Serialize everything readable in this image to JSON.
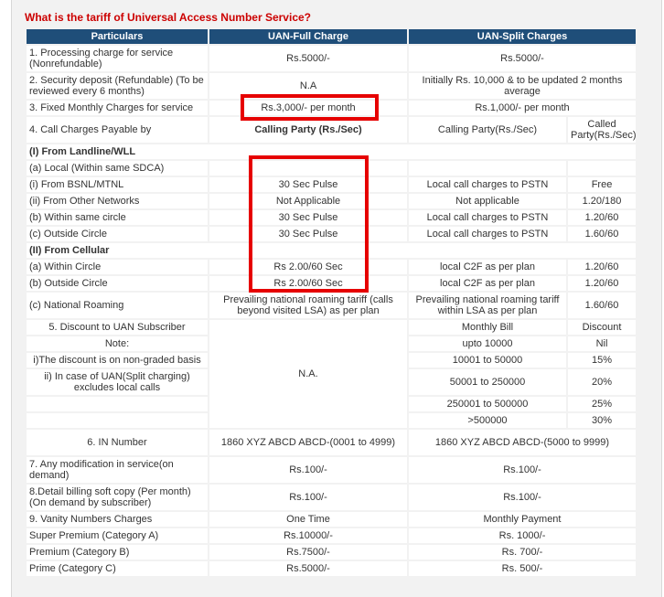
{
  "question": "What is the tariff of Universal Access Number Service?",
  "headers": {
    "particulars": "Particulars",
    "full": "UAN-Full Charge",
    "split": "UAN-Split Charges"
  },
  "r1": {
    "label": "1. Processing charge for service (Nonrefundable)",
    "full": "Rs.5000/-",
    "split": "Rs.5000/-"
  },
  "r2": {
    "label": "2. Security deposit (Refundable) (To be reviewed every 6 months)",
    "full": "N.A",
    "split": "Initially Rs. 10,000 & to be updated 2 months average"
  },
  "r3": {
    "label": "3. Fixed Monthly Charges for service",
    "full": "Rs.3,000/- per month",
    "split": "Rs.1,000/- per month"
  },
  "r4": {
    "label": "4. Call Charges Payable by",
    "full": "Calling Party (Rs./Sec)",
    "split_a": "Calling Party(Rs./Sec)",
    "split_b": "Called Party(Rs./Sec)"
  },
  "landline": {
    "section": "(I) From Landline/WLL",
    "local": "(a) Local (Within same SDCA)",
    "rows": [
      {
        "label": "(i) From BSNL/MTNL",
        "full": "30 Sec Pulse",
        "split_a": "Local call charges to PSTN",
        "split_b": "Free"
      },
      {
        "label": "(ii) From Other Networks",
        "full": "Not Applicable",
        "split_a": "Not applicable",
        "split_b": "1.20/180"
      },
      {
        "label": "(b) Within same circle",
        "full": "30 Sec Pulse",
        "split_a": "Local call charges to PSTN",
        "split_b": "1.20/60"
      },
      {
        "label": "(c) Outside Circle",
        "full": "30 Sec Pulse",
        "split_a": "Local call charges to PSTN",
        "split_b": "1.60/60"
      }
    ]
  },
  "cellular": {
    "section": "(II) From Cellular",
    "rows": [
      {
        "label": "(a) Within Circle",
        "full": "Rs 2.00/60 Sec",
        "split_a": "local C2F as per plan",
        "split_b": "1.20/60"
      },
      {
        "label": "(b) Outside Circle",
        "full": "Rs 2.00/60 Sec",
        "split_a": "local C2F as per plan",
        "split_b": "1.20/60"
      }
    ]
  },
  "roaming": {
    "label": "(c) National Roaming",
    "full": "Prevailing national roaming tariff (calls beyond visited LSA) as per plan",
    "split_a": "Prevailing national roaming tariff within LSA as per plan",
    "split_b": "1.60/60"
  },
  "discount": {
    "label": "5. Discount to UAN Subscriber",
    "note": "Note:",
    "note1": "i)The discount is on non-graded basis",
    "note2": "ii) In case of UAN(Split charging) excludes local calls",
    "full": "N.A.",
    "head_bill": "Monthly Bill",
    "head_disc": "Discount",
    "slabs": [
      {
        "bill": "upto 10000",
        "disc": "Nil"
      },
      {
        "bill": "10001 to 50000",
        "disc": "15%"
      },
      {
        "bill": "50001 to 250000",
        "disc": "20%"
      },
      {
        "bill": "250001 to 500000",
        "disc": "25%"
      },
      {
        "bill": ">500000",
        "disc": "30%"
      }
    ]
  },
  "r6": {
    "label": "6. IN Number",
    "full": "1860 XYZ ABCD ABCD-(0001 to 4999)",
    "split": "1860 XYZ ABCD ABCD-(5000 to 9999)"
  },
  "r7": {
    "label": "7. Any modification in service(on demand)",
    "full": "Rs.100/-",
    "split": "Rs.100/-"
  },
  "r8": {
    "label": "8.Detail billing soft copy (Per month)(On demand by subscriber)",
    "full": "Rs.100/-",
    "split": "Rs.100/-"
  },
  "r9": {
    "label": "9. Vanity Numbers Charges",
    "full": "One Time",
    "split": "Monthly Payment"
  },
  "vanity": [
    {
      "label": "Super Premium (Category A)",
      "full": "Rs.10000/-",
      "split": "Rs. 1000/-"
    },
    {
      "label": "Premium (Category B)",
      "full": "Rs.7500/-",
      "split": "Rs. 700/-"
    },
    {
      "label": "Prime (Category C)",
      "full": "Rs.5000/-",
      "split": "Rs. 500/-"
    }
  ],
  "colors": {
    "header_bg": "#1f4e79",
    "question": "#cc0000",
    "highlight": "#e60000"
  }
}
